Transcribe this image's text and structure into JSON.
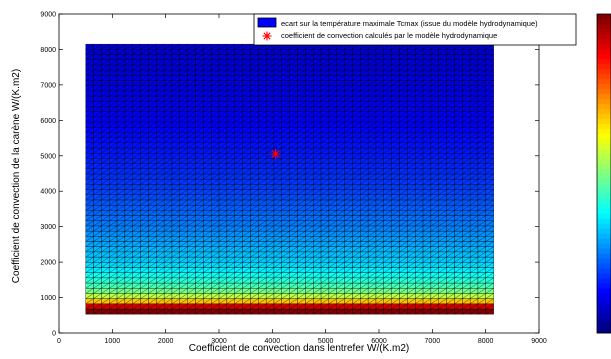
{
  "chart_data": {
    "type": "heatmap",
    "title": "",
    "xlabel": "Coefficient de convection dans lentrefer W/(K.m2)",
    "ylabel": "Coefficient de convection de la carène W/(K.m2)",
    "xlim": [
      0,
      9000
    ],
    "ylim": [
      0,
      9000
    ],
    "xticks": [
      "0",
      "1000",
      "2000",
      "3000",
      "4000",
      "5000",
      "6000",
      "7000",
      "8000",
      "9000"
    ],
    "yticks": [
      "0",
      "1000",
      "2000",
      "3000",
      "4000",
      "5000",
      "6000",
      "7000",
      "8000",
      "9000"
    ],
    "grid": false,
    "legend_position": "top-right",
    "surface": {
      "name": "ecart sur la température maximale Tcmax (issue du modèle hydrodynamique)",
      "x_range": [
        500,
        8150
      ],
      "y_range": [
        530,
        8150
      ],
      "columns": 52,
      "rows": 52,
      "colormap": "jet",
      "note_level_by_y": "bande rouge en bas (h carène faible), bleu foncé en haut",
      "color_levels": [
        {
          "y": 600,
          "level": 1.0
        },
        {
          "y": 750,
          "level": 0.92
        },
        {
          "y": 900,
          "level": 0.68
        },
        {
          "y": 1050,
          "level": 0.55
        },
        {
          "y": 1200,
          "level": 0.48
        },
        {
          "y": 1350,
          "level": 0.44
        },
        {
          "y": 1500,
          "level": 0.41
        },
        {
          "y": 1700,
          "level": 0.37
        },
        {
          "y": 2000,
          "level": 0.33
        },
        {
          "y": 2500,
          "level": 0.29
        },
        {
          "y": 3000,
          "level": 0.25
        },
        {
          "y": 4000,
          "level": 0.19
        },
        {
          "y": 5000,
          "level": 0.15
        },
        {
          "y": 6000,
          "level": 0.12
        },
        {
          "y": 7000,
          "level": 0.1
        },
        {
          "y": 8150,
          "level": 0.08
        }
      ]
    },
    "points": [
      {
        "name": "coefficient de convection calculés par le modèle hydrodynamique",
        "x": 4060,
        "y": 5050,
        "marker": "*",
        "color": "#ff0000"
      }
    ],
    "colorbar": {
      "colormap": "jet",
      "position": "right",
      "ticks": []
    }
  },
  "legend": {
    "surface_label": "ecart sur la température maximale Tcmax (issue du modèle hydrodynamique)",
    "point_label": "coefficient de convection calculés par le modèle hydrodynamique"
  }
}
